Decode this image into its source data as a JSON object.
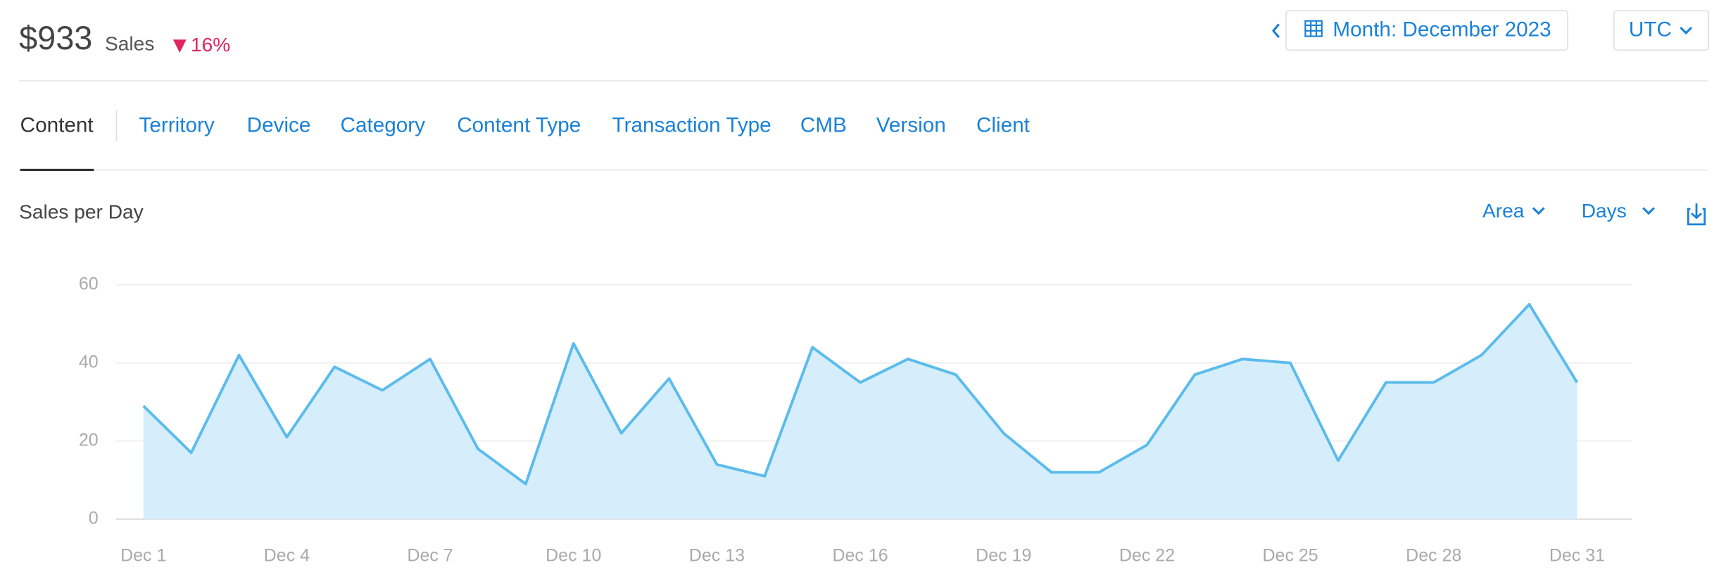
{
  "header": {
    "amount": "$933",
    "label": "Sales",
    "change": "16%",
    "period": "Month: December 2023",
    "timezone": "UTC"
  },
  "tabs": [
    "Content",
    "Territory",
    "Device",
    "Category",
    "Content Type",
    "Transaction Type",
    "CMB",
    "Version",
    "Client"
  ],
  "controls": {
    "chart_style": "Area",
    "granularity": "Days"
  },
  "chart_data": {
    "type": "area",
    "title": "Sales per Day",
    "categories": [
      "Dec 1",
      null,
      null,
      "Dec 4",
      null,
      null,
      "Dec 7",
      null,
      null,
      "Dec 10",
      null,
      null,
      "Dec 13",
      null,
      null,
      "Dec 16",
      null,
      null,
      "Dec 19",
      null,
      null,
      "Dec 22",
      null,
      null,
      "Dec 25",
      null,
      null,
      "Dec 28",
      null,
      null,
      "Dec 31"
    ],
    "values": [
      29,
      17,
      42,
      21,
      39,
      33,
      41,
      18,
      9,
      45,
      22,
      36,
      14,
      11,
      44,
      35,
      41,
      37,
      22,
      12,
      12,
      19,
      37,
      41,
      40,
      15,
      35,
      35,
      42,
      55,
      35
    ],
    "color": "#5bbcec",
    "fill": "#d6eefb",
    "ylim": [
      0,
      60
    ],
    "yticks": [
      0,
      20,
      40,
      60
    ],
    "grid": true
  }
}
